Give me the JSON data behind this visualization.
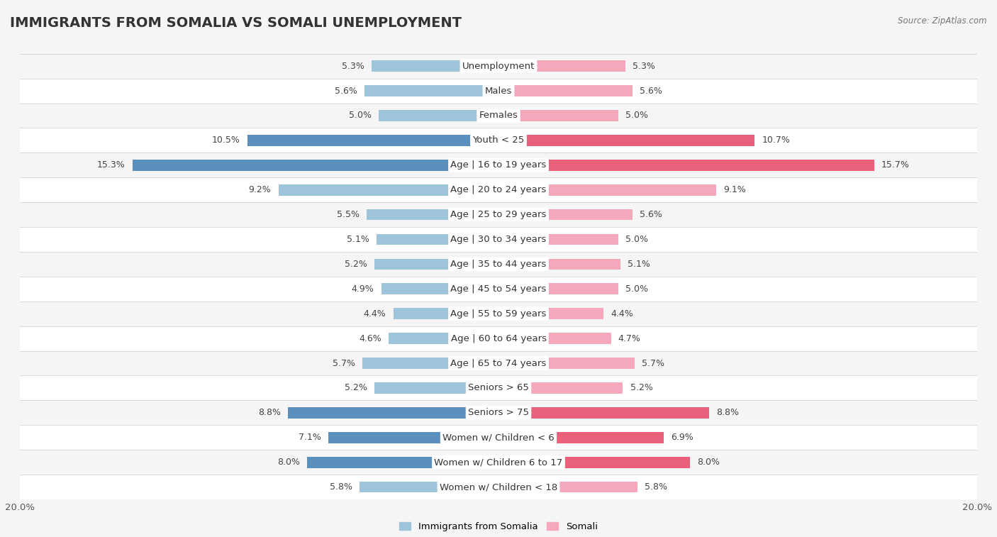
{
  "title": "IMMIGRANTS FROM SOMALIA VS SOMALI UNEMPLOYMENT",
  "source": "Source: ZipAtlas.com",
  "categories": [
    "Unemployment",
    "Males",
    "Females",
    "Youth < 25",
    "Age | 16 to 19 years",
    "Age | 20 to 24 years",
    "Age | 25 to 29 years",
    "Age | 30 to 34 years",
    "Age | 35 to 44 years",
    "Age | 45 to 54 years",
    "Age | 55 to 59 years",
    "Age | 60 to 64 years",
    "Age | 65 to 74 years",
    "Seniors > 65",
    "Seniors > 75",
    "Women w/ Children < 6",
    "Women w/ Children 6 to 17",
    "Women w/ Children < 18"
  ],
  "left_values": [
    5.3,
    5.6,
    5.0,
    10.5,
    15.3,
    9.2,
    5.5,
    5.1,
    5.2,
    4.9,
    4.4,
    4.6,
    5.7,
    5.2,
    8.8,
    7.1,
    8.0,
    5.8
  ],
  "right_values": [
    5.3,
    5.6,
    5.0,
    10.7,
    15.7,
    9.1,
    5.6,
    5.0,
    5.1,
    5.0,
    4.4,
    4.7,
    5.7,
    5.2,
    8.8,
    6.9,
    8.0,
    5.8
  ],
  "left_color": "#9ec4dc",
  "right_color": "#f5a8bb",
  "highlight_left_color": "#5b8fbe",
  "highlight_right_color": "#e8607a",
  "highlight_rows": [
    3,
    4,
    14,
    15,
    16
  ],
  "xlim": 20.0,
  "row_colors": [
    "#f5f5f5",
    "#ffffff"
  ],
  "legend_left": "Immigrants from Somalia",
  "legend_right": "Somali",
  "title_fontsize": 14,
  "label_fontsize": 9.5,
  "value_fontsize": 9
}
